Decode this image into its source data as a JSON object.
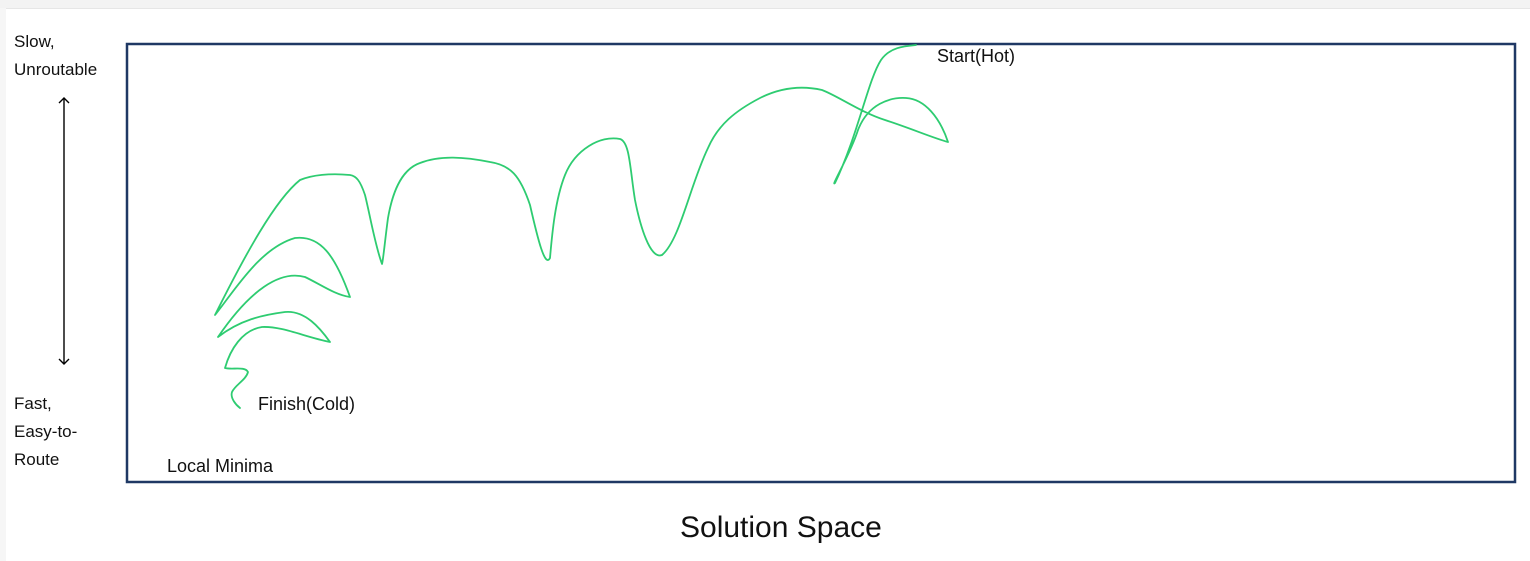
{
  "axis_labels": {
    "top_line1": "Slow,",
    "top_line2": "Unroutable",
    "bottom_line1": "Fast,",
    "bottom_line2": "Easy-to-",
    "bottom_line3": "Route"
  },
  "annotations": {
    "start": "Start(Hot)",
    "finish": "Finish(Cold)",
    "local_minima": "Local Minima"
  },
  "caption": "Solution Space",
  "colors": {
    "box_border": "#1f3864",
    "path": "#2ecc71",
    "arrow": "#000000"
  }
}
